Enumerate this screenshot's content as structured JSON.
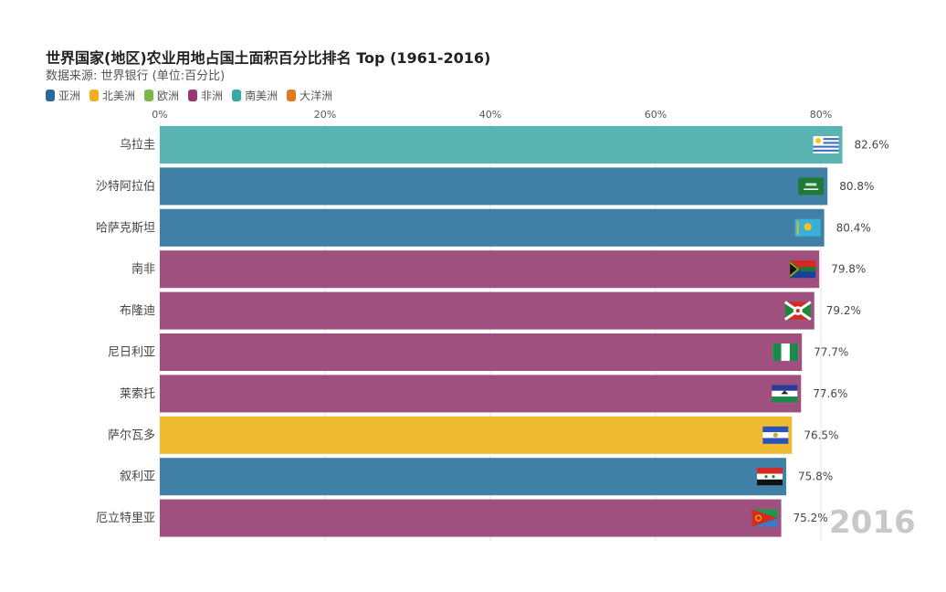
{
  "header": {
    "title": "世界国家(地区)农业用地占国土面积百分比排名 Top (1961-2016)",
    "subtitle": "数据来源: 世界银行 (单位:百分比)"
  },
  "legend": [
    {
      "label": "亚洲",
      "color": "#2a6a98"
    },
    {
      "label": "北美洲",
      "color": "#f0b020"
    },
    {
      "label": "欧洲",
      "color": "#7ab648"
    },
    {
      "label": "非洲",
      "color": "#9a3a74"
    },
    {
      "label": "南美洲",
      "color": "#3aa8a2"
    },
    {
      "label": "大洋洲",
      "color": "#e07a1e"
    }
  ],
  "year_label": "2016",
  "chart_data": {
    "type": "bar",
    "orientation": "horizontal",
    "xlim": [
      0,
      100
    ],
    "ticks": [
      {
        "value": 0,
        "label": "0%"
      },
      {
        "value": 20,
        "label": "20%"
      },
      {
        "value": 40,
        "label": "40%"
      },
      {
        "value": 60,
        "label": "60%"
      },
      {
        "value": 80,
        "label": "80%"
      }
    ],
    "grid": true,
    "bars": [
      {
        "country": "乌拉圭",
        "value": 82.6,
        "label": "82.6%",
        "continent": "南美洲",
        "color": "#5ab4b2",
        "flag": "uruguay-flag-icon"
      },
      {
        "country": "沙特阿拉伯",
        "value": 80.8,
        "label": "80.8%",
        "continent": "亚洲",
        "color": "#4080a6",
        "flag": "saudi-arabia-flag-icon"
      },
      {
        "country": "哈萨克斯坦",
        "value": 80.4,
        "label": "80.4%",
        "continent": "亚洲",
        "color": "#4080a6",
        "flag": "kazakhstan-flag-icon"
      },
      {
        "country": "南非",
        "value": 79.8,
        "label": "79.8%",
        "continent": "非洲",
        "color": "#a0507e",
        "flag": "south-africa-flag-icon"
      },
      {
        "country": "布隆迪",
        "value": 79.2,
        "label": "79.2%",
        "continent": "非洲",
        "color": "#a0507e",
        "flag": "burundi-flag-icon"
      },
      {
        "country": "尼日利亚",
        "value": 77.7,
        "label": "77.7%",
        "continent": "非洲",
        "color": "#a0507e",
        "flag": "nigeria-flag-icon"
      },
      {
        "country": "莱索托",
        "value": 77.6,
        "label": "77.6%",
        "continent": "非洲",
        "color": "#a0507e",
        "flag": "lesotho-flag-icon"
      },
      {
        "country": "萨尔瓦多",
        "value": 76.5,
        "label": "76.5%",
        "continent": "北美洲",
        "color": "#f0bb30",
        "flag": "el-salvador-flag-icon"
      },
      {
        "country": "叙利亚",
        "value": 75.8,
        "label": "75.8%",
        "continent": "亚洲",
        "color": "#4080a6",
        "flag": "syria-flag-icon"
      },
      {
        "country": "厄立特里亚",
        "value": 75.2,
        "label": "75.2%",
        "continent": "非洲",
        "color": "#a0507e",
        "flag": "eritrea-flag-icon"
      }
    ]
  }
}
